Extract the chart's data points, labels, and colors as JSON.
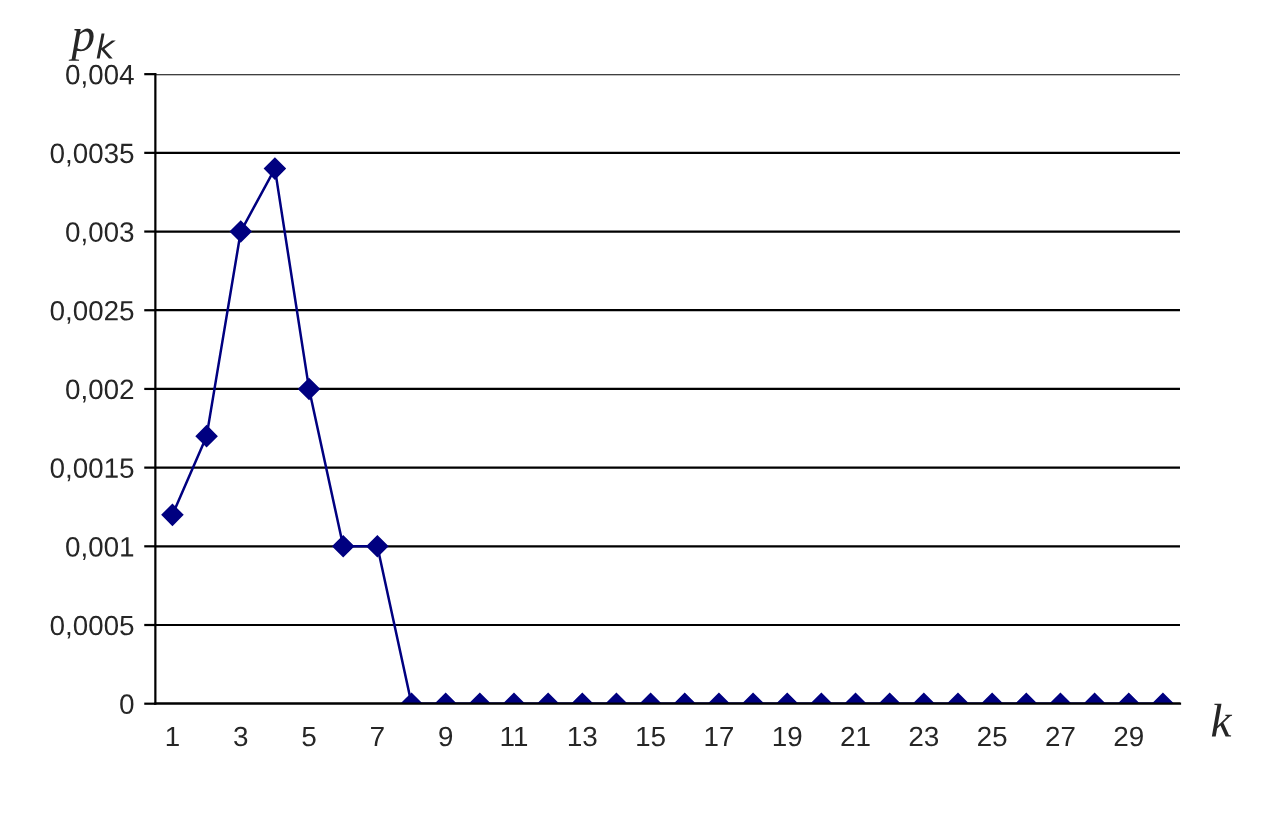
{
  "chart_data": {
    "type": "line",
    "ylabel": "p$_{k}$",
    "xlabel": "k",
    "categories": [
      "1",
      null,
      "3",
      null,
      "5",
      null,
      "7",
      null,
      "9",
      null,
      "11",
      null,
      "13",
      null,
      "15",
      null,
      "17",
      null,
      "19",
      null,
      "21",
      null,
      "23",
      null,
      "25",
      null,
      "27",
      null,
      "29",
      null
    ],
    "series": [
      {
        "color": "#000080",
        "values": [
          0.0012,
          0.0017,
          0.003,
          0.0034,
          0.002,
          0.001,
          0.001,
          0,
          0,
          0,
          0,
          0,
          0,
          0,
          0,
          0,
          0,
          0,
          0,
          0,
          0,
          0,
          0,
          0,
          0,
          0,
          0,
          0,
          0,
          0
        ]
      }
    ],
    "ylim": [
      0,
      0.004
    ],
    "yticks": [
      {
        "value": 0,
        "label": "0"
      },
      {
        "value": 0.0005,
        "label": "0,0005"
      },
      {
        "value": 0.001,
        "label": "0,001"
      },
      {
        "value": 0.0015,
        "label": "0,0015"
      },
      {
        "value": 0.002,
        "label": "0,002"
      },
      {
        "value": 0.0025,
        "label": "0,0025"
      },
      {
        "value": 0.003,
        "label": "0,003"
      },
      {
        "value": 0.0035,
        "label": "0,0035"
      },
      {
        "value": 0.004,
        "label": "0,004"
      }
    ],
    "grid": "y",
    "marker": "diamond",
    "line_style": "solid",
    "legend": false
  }
}
